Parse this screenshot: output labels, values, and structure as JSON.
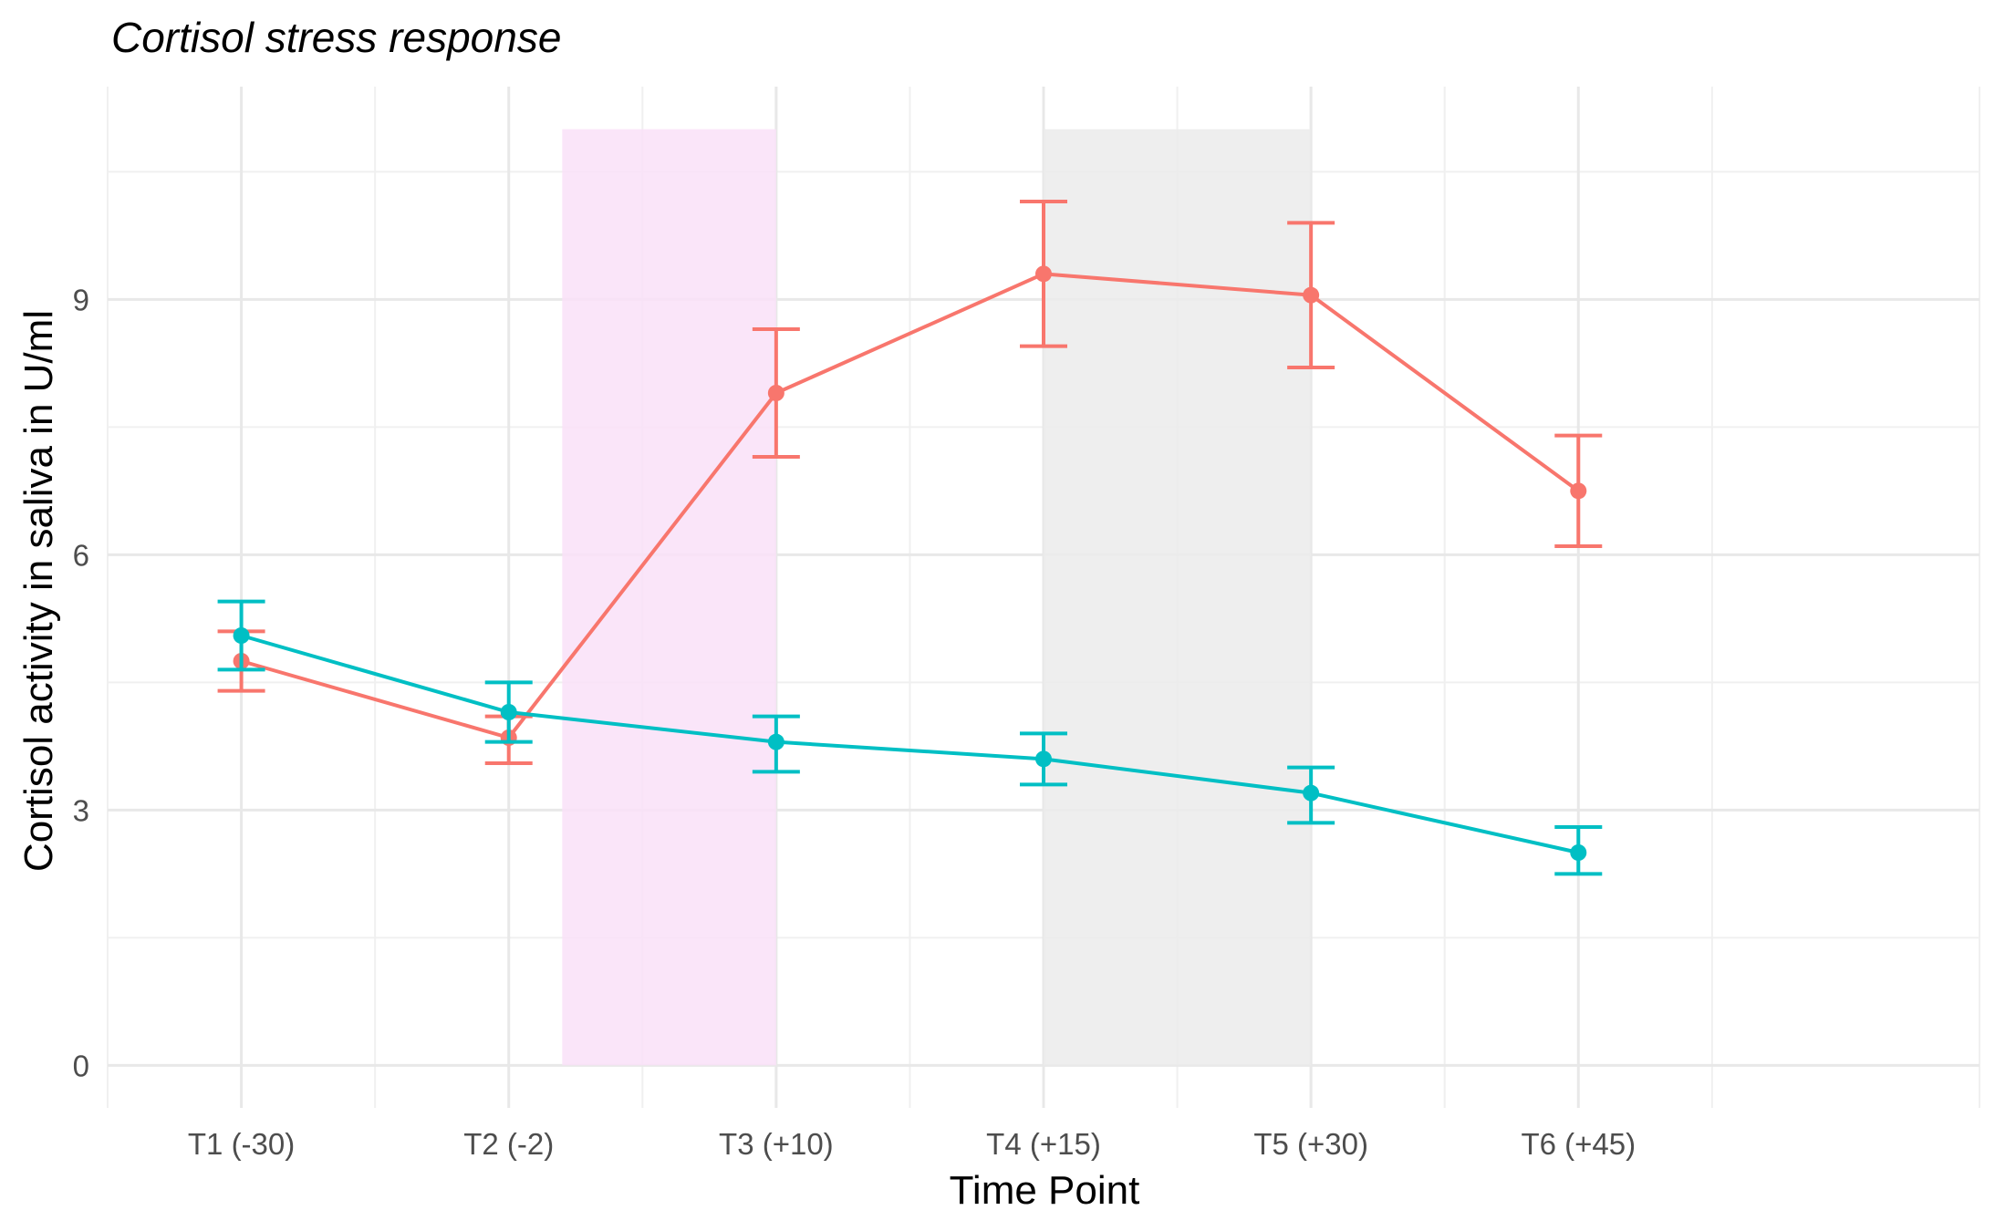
{
  "chart_data": {
    "type": "line",
    "title": "Cortisol stress response",
    "xlabel": "Time Point",
    "ylabel": "Cortisol activity in saliva in U/ml",
    "categories": [
      "T1 (-30)",
      "T2 (-2)",
      "T3 (+10)",
      "T4 (+15)",
      "T5 (+30)",
      "T6 (+45)"
    ],
    "ylim": [
      -0.5,
      11.5
    ],
    "yticks": [
      0,
      3,
      6,
      9
    ],
    "grid": true,
    "legend": "none",
    "series": [
      {
        "color": "#F8766D",
        "values": [
          4.75,
          3.85,
          7.9,
          9.3,
          9.05,
          6.75
        ],
        "error_low": [
          4.4,
          3.55,
          7.15,
          8.45,
          8.2,
          6.1
        ],
        "error_high": [
          5.1,
          4.1,
          8.65,
          10.15,
          9.9,
          7.4
        ]
      },
      {
        "color": "#00BFC4",
        "values": [
          5.05,
          4.15,
          3.8,
          3.6,
          3.2,
          2.5
        ],
        "error_low": [
          4.65,
          3.8,
          3.45,
          3.3,
          2.85,
          2.25
        ],
        "error_high": [
          5.45,
          4.5,
          4.1,
          3.9,
          3.5,
          2.8
        ]
      }
    ],
    "shaded_regions": [
      {
        "x_start": 2.2,
        "x_end": 3,
        "y_start": 0,
        "y_end": 11,
        "color": "#F9E1F8"
      },
      {
        "x_start": 4,
        "x_end": 5,
        "y_start": 0,
        "y_end": 11,
        "color": "#EBEBEB"
      }
    ]
  }
}
